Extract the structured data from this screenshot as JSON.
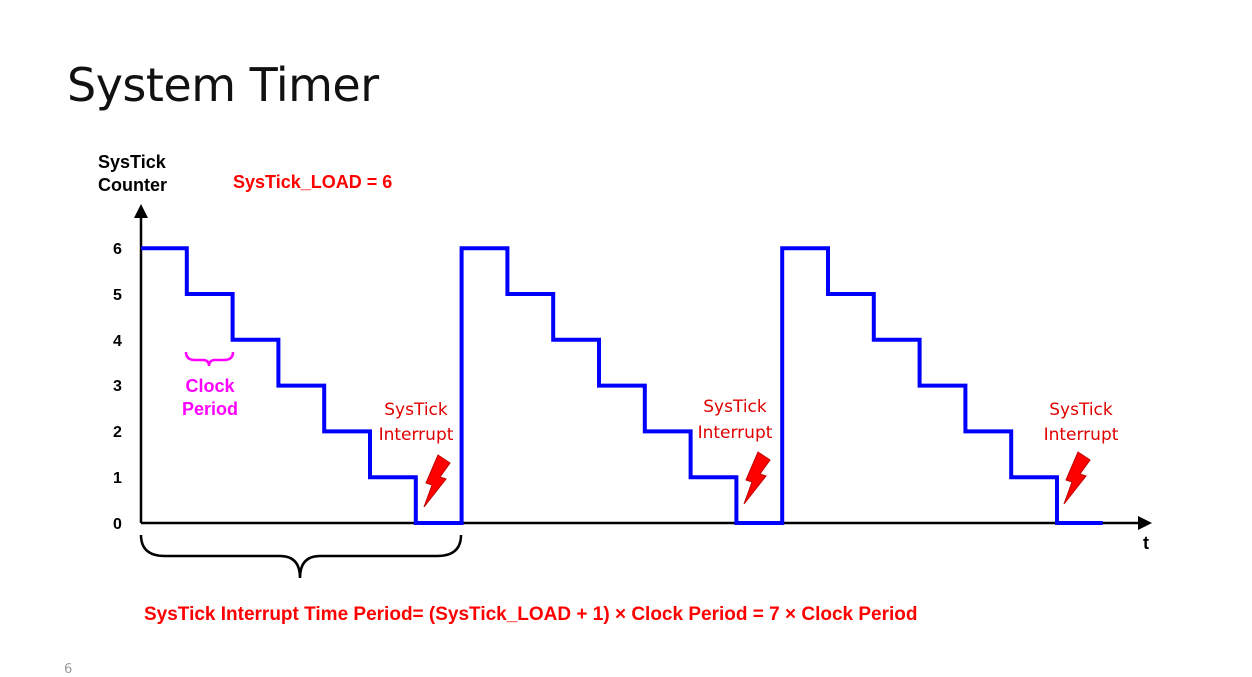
{
  "slide": {
    "title": "System Timer",
    "page_number": "6"
  },
  "diagram": {
    "y_axis_label_line1": "SysTick",
    "y_axis_label_line2": "Counter",
    "x_axis_label": "t",
    "y_ticks": [
      "6",
      "5",
      "4",
      "3",
      "2",
      "1",
      "0"
    ],
    "load_label": "SysTick_LOAD = 6",
    "clock_label_line1": "Clock",
    "clock_label_line2": "Period",
    "interrupt_label_line1": "SysTick",
    "interrupt_label_line2": "Interrupt",
    "formula": "SysTick Interrupt Time Period= (SysTick_LOAD + 1) × Clock Period = 7 × Clock Period"
  },
  "chart_data": {
    "type": "line",
    "step": true,
    "xlabel": "t",
    "ylabel": "SysTick Counter",
    "ylim": [
      0,
      6
    ],
    "series": [
      {
        "x": [
          0,
          1,
          1,
          2,
          2,
          3,
          3,
          4,
          4,
          5,
          5,
          6,
          6,
          7,
          7,
          8,
          8,
          9,
          9,
          10,
          10,
          11,
          11,
          12,
          12,
          13,
          13,
          14,
          14,
          15,
          15,
          16,
          16,
          17,
          17,
          18,
          18,
          19,
          19,
          20,
          20,
          21
        ],
        "y": [
          6,
          6,
          5,
          5,
          4,
          4,
          3,
          3,
          2,
          2,
          1,
          1,
          0,
          0,
          6,
          6,
          5,
          5,
          4,
          4,
          3,
          3,
          2,
          2,
          1,
          1,
          0,
          0,
          6,
          6,
          5,
          5,
          4,
          4,
          3,
          3,
          2,
          2,
          1,
          1,
          0,
          0
        ]
      }
    ],
    "colors": {
      "waveform": "#0000ff",
      "annotation": "#ff0000",
      "clock": "#ff00ff",
      "axes": "#000000"
    }
  }
}
